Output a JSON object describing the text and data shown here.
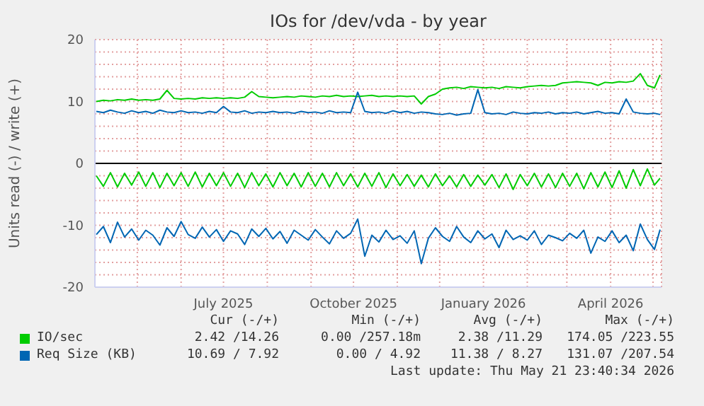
{
  "chart_data": {
    "type": "line",
    "title": "IOs for /dev/vda - by year",
    "ylabel": "Units read (-) / write (+)",
    "x": [
      "2025-04-02",
      "2025-04-07",
      "2025-04-12",
      "2025-04-17",
      "2025-04-22",
      "2025-04-27",
      "2025-05-02",
      "2025-05-07",
      "2025-05-12",
      "2025-05-17",
      "2025-05-22",
      "2025-05-27",
      "2025-06-01",
      "2025-06-06",
      "2025-06-11",
      "2025-06-16",
      "2025-06-21",
      "2025-06-26",
      "2025-07-01",
      "2025-07-06",
      "2025-07-11",
      "2025-07-16",
      "2025-07-21",
      "2025-07-26",
      "2025-07-31",
      "2025-08-05",
      "2025-08-10",
      "2025-08-15",
      "2025-08-20",
      "2025-08-25",
      "2025-08-30",
      "2025-09-04",
      "2025-09-09",
      "2025-09-14",
      "2025-09-19",
      "2025-09-24",
      "2025-09-29",
      "2025-10-04",
      "2025-10-09",
      "2025-10-14",
      "2025-10-19",
      "2025-10-24",
      "2025-10-29",
      "2025-11-03",
      "2025-11-08",
      "2025-11-13",
      "2025-11-18",
      "2025-11-23",
      "2025-11-28",
      "2025-12-03",
      "2025-12-08",
      "2025-12-13",
      "2025-12-18",
      "2025-12-23",
      "2025-12-28",
      "2026-01-02",
      "2026-01-07",
      "2026-01-12",
      "2026-01-17",
      "2026-01-22",
      "2026-01-27",
      "2026-02-01",
      "2026-02-06",
      "2026-02-11",
      "2026-02-16",
      "2026-02-21",
      "2026-02-26",
      "2026-03-03",
      "2026-03-08",
      "2026-03-13",
      "2026-03-18",
      "2026-03-23",
      "2026-03-28",
      "2026-04-02",
      "2026-04-07",
      "2026-04-12",
      "2026-04-17",
      "2026-04-22",
      "2026-04-27",
      "2026-05-02",
      "2026-05-06"
    ],
    "series": [
      {
        "name": "IO/sec",
        "color": "#00cc00",
        "values": [
          10.0,
          10.2,
          10.1,
          10.3,
          10.2,
          10.4,
          10.2,
          10.3,
          10.2,
          10.4,
          11.8,
          10.5,
          10.4,
          10.5,
          10.4,
          10.6,
          10.5,
          10.6,
          10.5,
          10.6,
          10.5,
          10.7,
          11.6,
          10.8,
          10.7,
          10.6,
          10.7,
          10.8,
          10.7,
          10.9,
          10.8,
          10.7,
          10.9,
          10.8,
          11.0,
          10.8,
          10.9,
          10.8,
          10.9,
          11.0,
          10.8,
          10.9,
          10.8,
          10.9,
          10.8,
          10.9,
          9.6,
          10.8,
          11.2,
          12.0,
          12.2,
          12.3,
          12.1,
          12.4,
          12.3,
          12.2,
          12.3,
          12.1,
          12.4,
          12.3,
          12.2,
          12.4,
          12.5,
          12.6,
          12.5,
          12.6,
          13.0,
          13.1,
          13.2,
          13.1,
          13.0,
          12.6,
          13.1,
          13.0,
          13.2,
          13.1,
          13.3,
          14.5,
          12.6,
          12.2,
          14.3
        ]
      },
      {
        "color": "#00cc00",
        "values": [
          -2.0,
          -3.7,
          -1.5,
          -3.8,
          -1.6,
          -3.5,
          -1.4,
          -3.7,
          -1.5,
          -3.9,
          -1.6,
          -3.6,
          -1.5,
          -3.7,
          -1.4,
          -3.8,
          -1.6,
          -3.6,
          -1.5,
          -3.7,
          -1.6,
          -3.9,
          -1.5,
          -3.6,
          -1.7,
          -3.8,
          -1.5,
          -3.6,
          -1.6,
          -3.8,
          -1.5,
          -3.7,
          -1.6,
          -3.8,
          -1.5,
          -3.6,
          -1.7,
          -3.8,
          -1.6,
          -3.7,
          -1.5,
          -3.9,
          -1.7,
          -3.6,
          -1.8,
          -3.7,
          -1.9,
          -3.8,
          -1.7,
          -3.6,
          -2.0,
          -3.8,
          -1.8,
          -3.7,
          -1.9,
          -3.5,
          -1.8,
          -3.9,
          -1.7,
          -4.2,
          -1.8,
          -3.6,
          -1.6,
          -3.8,
          -1.7,
          -3.9,
          -1.6,
          -3.7,
          -1.6,
          -4.1,
          -1.5,
          -3.8,
          -1.4,
          -3.9,
          -1.2,
          -4.0,
          -1.0,
          -3.6,
          -0.9,
          -3.5,
          -2.4
        ]
      },
      {
        "name": "Req Size (KB)",
        "color": "#0066b3",
        "values": [
          8.4,
          8.2,
          8.6,
          8.3,
          8.1,
          8.5,
          8.2,
          8.4,
          8.1,
          8.6,
          8.3,
          8.2,
          8.5,
          8.2,
          8.3,
          8.1,
          8.4,
          8.2,
          9.2,
          8.3,
          8.2,
          8.5,
          8.1,
          8.3,
          8.2,
          8.4,
          8.2,
          8.3,
          8.1,
          8.4,
          8.2,
          8.3,
          8.1,
          8.5,
          8.2,
          8.3,
          8.2,
          11.5,
          8.4,
          8.2,
          8.3,
          8.1,
          8.5,
          8.2,
          8.4,
          8.1,
          8.3,
          8.2,
          8.0,
          7.9,
          8.1,
          7.8,
          8.0,
          8.1,
          11.9,
          8.2,
          8.0,
          8.1,
          7.9,
          8.3,
          8.1,
          8.0,
          8.2,
          8.1,
          8.3,
          8.0,
          8.2,
          8.1,
          8.3,
          8.0,
          8.2,
          8.4,
          8.1,
          8.2,
          8.0,
          10.4,
          8.3,
          8.1,
          8.0,
          8.1,
          7.9
        ]
      },
      {
        "color": "#0066b3",
        "values": [
          -11.5,
          -10.2,
          -12.8,
          -9.5,
          -11.9,
          -10.6,
          -12.4,
          -10.8,
          -11.6,
          -13.2,
          -10.4,
          -11.8,
          -9.4,
          -11.5,
          -12.1,
          -10.3,
          -11.9,
          -10.7,
          -12.6,
          -10.9,
          -11.4,
          -13.1,
          -10.6,
          -11.8,
          -10.5,
          -12.2,
          -11.0,
          -12.9,
          -10.8,
          -11.6,
          -12.4,
          -10.7,
          -11.9,
          -13.0,
          -10.9,
          -12.1,
          -11.3,
          -9.0,
          -15.0,
          -11.6,
          -12.7,
          -10.8,
          -12.3,
          -11.7,
          -12.9,
          -10.9,
          -16.2,
          -12.1,
          -10.4,
          -11.8,
          -12.6,
          -10.2,
          -11.9,
          -12.8,
          -10.9,
          -12.2,
          -11.4,
          -13.6,
          -10.8,
          -12.3,
          -11.7,
          -12.4,
          -10.9,
          -13.1,
          -11.6,
          -12.0,
          -12.5,
          -11.3,
          -12.1,
          -10.8,
          -14.5,
          -11.9,
          -12.6,
          -10.9,
          -12.8,
          -11.6,
          -14.1,
          -9.8,
          -12.3,
          -13.9,
          -10.7
        ]
      }
    ],
    "xlim": [
      "2025-04-01",
      "2026-05-07"
    ],
    "xticks": [
      {
        "value": "2025-05-01",
        "label": null
      },
      {
        "value": "2025-06-01",
        "label": null
      },
      {
        "value": "2025-07-01",
        "label": "July 2025"
      },
      {
        "value": "2025-08-01",
        "label": null
      },
      {
        "value": "2025-09-01",
        "label": null
      },
      {
        "value": "2025-10-01",
        "label": "October 2025"
      },
      {
        "value": "2025-11-01",
        "label": null
      },
      {
        "value": "2025-12-01",
        "label": null
      },
      {
        "value": "2026-01-01",
        "label": "January 2026"
      },
      {
        "value": "2026-02-01",
        "label": null
      },
      {
        "value": "2026-03-01",
        "label": null
      },
      {
        "value": "2026-04-01",
        "label": "April 2026"
      },
      {
        "value": "2026-05-01",
        "label": null
      }
    ],
    "ylim": [
      -20,
      20
    ],
    "yticks": [
      -20,
      {
        "value": -18,
        "label": null
      },
      {
        "value": -16,
        "label": null
      },
      {
        "value": -14,
        "label": null
      },
      {
        "value": -12,
        "label": null
      },
      -10,
      {
        "value": -8,
        "label": null
      },
      {
        "value": -6,
        "label": null
      },
      {
        "value": -4,
        "label": null
      },
      {
        "value": -2,
        "label": null
      },
      0,
      {
        "value": 2,
        "label": null
      },
      {
        "value": 4,
        "label": null
      },
      {
        "value": 6,
        "label": null
      },
      {
        "value": 8,
        "label": null
      },
      10,
      {
        "value": 12,
        "label": null
      },
      {
        "value": 14,
        "label": null
      },
      {
        "value": 16,
        "label": null
      },
      {
        "value": 18,
        "label": null
      },
      20
    ],
    "grid": true,
    "legend": "bottom",
    "ref_lines": [
      {
        "axis": "y",
        "value": 0,
        "color": "#000000"
      }
    ],
    "annotations": [
      "Cur (-/+)",
      "Min (-/+)",
      "Avg (-/+)",
      "Max (-/+)",
      "2.42 /14.26",
      "0.00 /257.18m",
      "2.38 /11.29",
      "174.05 /223.55",
      "10.69 / 7.92",
      "0.00 / 4.92",
      "11.38 / 8.27",
      "131.07 /207.54",
      "Last update: Thu May 21 23:40:34 2026"
    ]
  }
}
